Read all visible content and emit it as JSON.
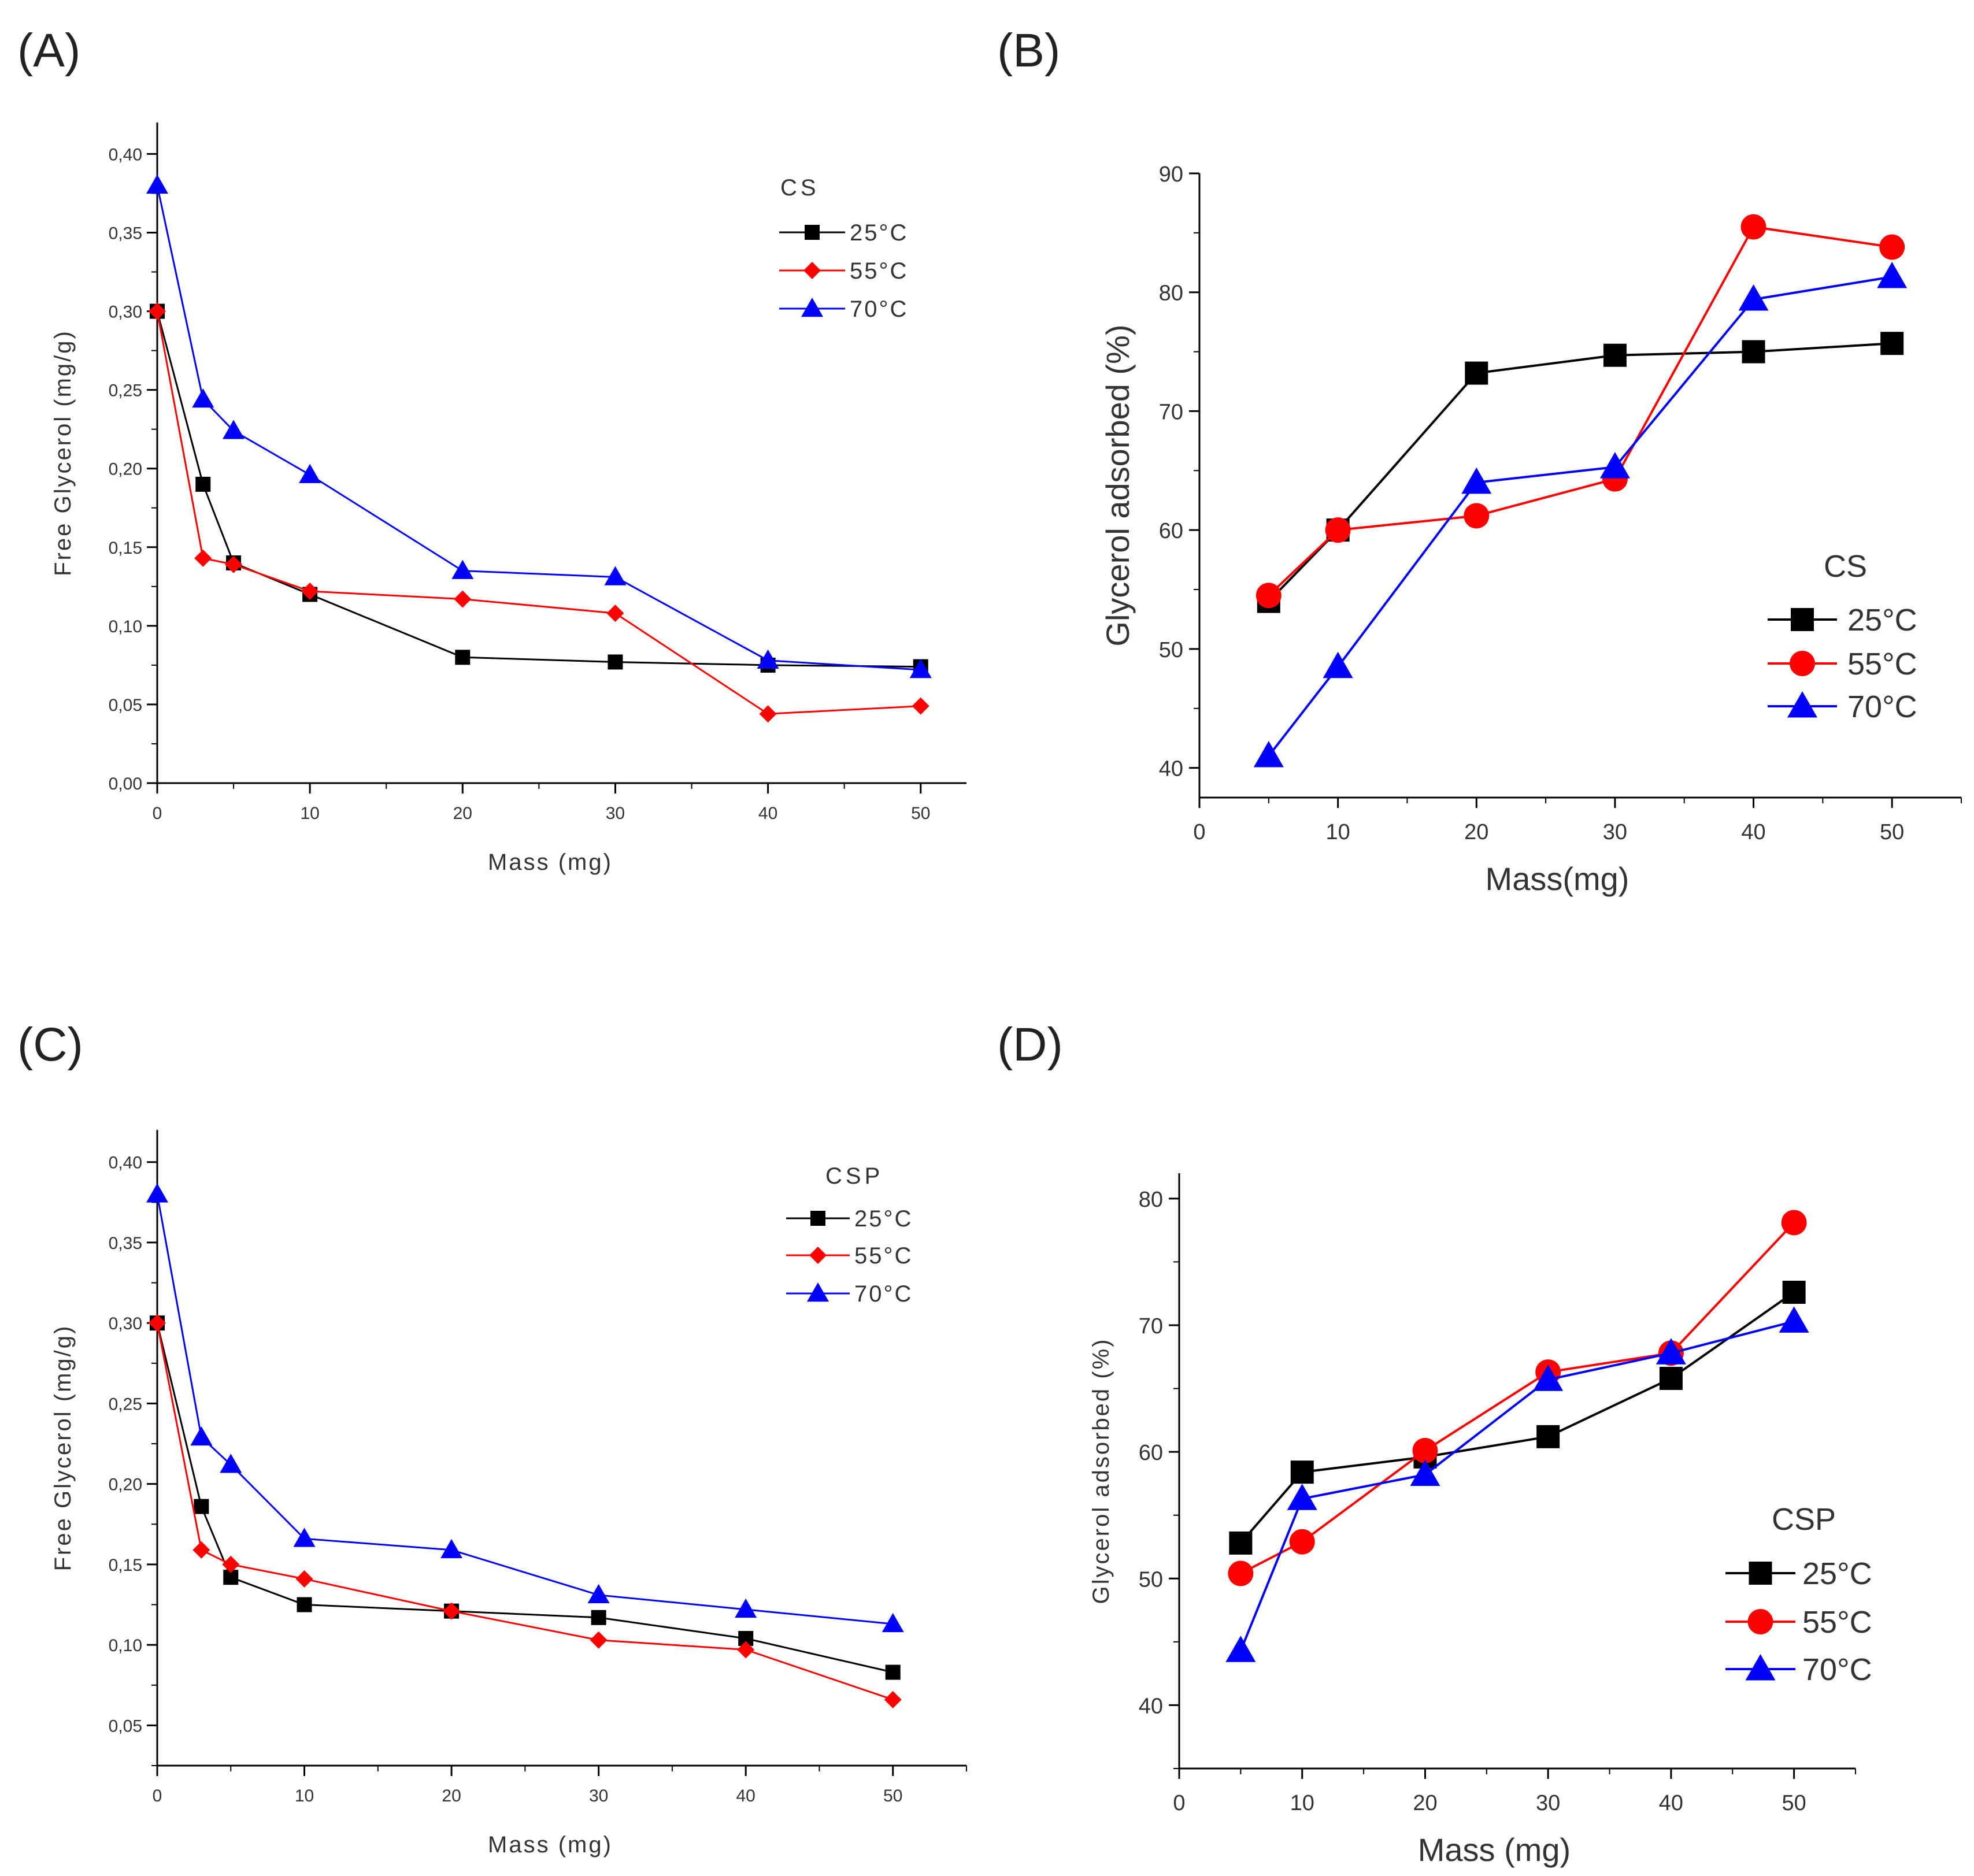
{
  "chart_data": [
    {
      "id": "A",
      "panel_label": "(A)",
      "type": "line",
      "xlabel": "Mass (mg)",
      "ylabel": "Free Glycerol (mg/g)",
      "xlim": [
        0,
        53
      ],
      "ylim": [
        0,
        0.42
      ],
      "xticks": [
        0,
        10,
        20,
        30,
        40,
        50
      ],
      "xtick_labels": [
        "0",
        "10",
        "20",
        "30",
        "40",
        "50"
      ],
      "yticks": [
        0,
        0.05,
        0.1,
        0.15,
        0.2,
        0.25,
        0.3,
        0.35,
        0.4
      ],
      "ytick_labels": [
        "0,00",
        "0,05",
        "0,10",
        "0,15",
        "0,20",
        "0,25",
        "0,30",
        "0,35",
        "0,40"
      ],
      "legend_title": "CS",
      "legend_position": "top-right",
      "series": [
        {
          "name": "25°C",
          "color": "#000000",
          "marker": "square",
          "x": [
            0,
            3,
            5,
            10,
            20,
            30,
            40,
            50
          ],
          "y": [
            0.3,
            0.19,
            0.14,
            0.12,
            0.08,
            0.077,
            0.075,
            0.074
          ]
        },
        {
          "name": "55°C",
          "color": "#ff0000",
          "marker": "diamond",
          "x": [
            0,
            3,
            5,
            10,
            20,
            30,
            40,
            50
          ],
          "y": [
            0.3,
            0.143,
            0.139,
            0.122,
            0.117,
            0.108,
            0.044,
            0.049
          ]
        },
        {
          "name": "70°C",
          "color": "#0000ff",
          "marker": "triangle",
          "x": [
            0,
            3,
            5,
            10,
            20,
            30,
            40,
            50
          ],
          "y": [
            0.38,
            0.244,
            0.224,
            0.196,
            0.135,
            0.131,
            0.078,
            0.072
          ]
        }
      ]
    },
    {
      "id": "B",
      "panel_label": "(B)",
      "type": "line",
      "xlabel": "Mass(mg)",
      "ylabel": "Glycerol adsorbed (%)",
      "xlim": [
        0,
        55
      ],
      "ylim": [
        37.5,
        90
      ],
      "xticks": [
        0,
        10,
        20,
        30,
        40,
        50
      ],
      "xtick_labels": [
        "0",
        "10",
        "20",
        "30",
        "40",
        "50"
      ],
      "yticks": [
        40,
        50,
        60,
        70,
        80,
        90
      ],
      "ytick_labels": [
        "40",
        "50",
        "60",
        "70",
        "80",
        "90"
      ],
      "legend_title": "CS",
      "legend_position": "bottom-right",
      "series": [
        {
          "name": "25°C",
          "color": "#000000",
          "marker": "square",
          "x": [
            5,
            10,
            20,
            30,
            40,
            50
          ],
          "y": [
            54,
            60,
            73.2,
            74.7,
            75,
            75.7
          ]
        },
        {
          "name": "55°C",
          "color": "#ff0000",
          "marker": "circle",
          "x": [
            5,
            10,
            20,
            30,
            40,
            50
          ],
          "y": [
            54.5,
            60,
            61.2,
            64.3,
            85.5,
            83.8
          ]
        },
        {
          "name": "70°C",
          "color": "#0000ff",
          "marker": "triangle",
          "x": [
            5,
            10,
            20,
            30,
            40,
            50
          ],
          "y": [
            41,
            48.5,
            64,
            65.3,
            79.4,
            81.3
          ]
        }
      ]
    },
    {
      "id": "C",
      "panel_label": "(C)",
      "type": "line",
      "xlabel": "Mass (mg)",
      "ylabel": "Free Glycerol (mg/g)",
      "xlim": [
        0,
        55
      ],
      "ylim": [
        0.025,
        0.42
      ],
      "xticks": [
        0,
        10,
        20,
        30,
        40,
        50
      ],
      "xtick_labels": [
        "0",
        "10",
        "20",
        "30",
        "40",
        "50"
      ],
      "yticks": [
        0.05,
        0.1,
        0.15,
        0.2,
        0.25,
        0.3,
        0.35,
        0.4
      ],
      "ytick_labels": [
        "0,05",
        "0,10",
        "0,15",
        "0,20",
        "0,25",
        "0,30",
        "0,35",
        "0,40"
      ],
      "legend_title": "CSP",
      "legend_position": "top-right",
      "series": [
        {
          "name": "25°C",
          "color": "#000000",
          "marker": "square",
          "x": [
            0,
            3,
            5,
            10,
            20,
            30,
            40,
            50
          ],
          "y": [
            0.3,
            0.186,
            0.142,
            0.125,
            0.121,
            0.117,
            0.104,
            0.083
          ]
        },
        {
          "name": "55°C",
          "color": "#ff0000",
          "marker": "diamond",
          "x": [
            0,
            3,
            5,
            10,
            20,
            30,
            40,
            50
          ],
          "y": [
            0.3,
            0.159,
            0.15,
            0.141,
            0.121,
            0.103,
            0.097,
            0.066
          ]
        },
        {
          "name": "70°C",
          "color": "#0000ff",
          "marker": "triangle",
          "x": [
            0,
            3,
            5,
            10,
            20,
            30,
            40,
            50
          ],
          "y": [
            0.38,
            0.229,
            0.212,
            0.166,
            0.159,
            0.131,
            0.122,
            0.113
          ]
        }
      ]
    },
    {
      "id": "D",
      "panel_label": "(D)",
      "type": "line",
      "xlabel": "Mass (mg)",
      "ylabel": "Glycerol adsorbed (%)",
      "xlim": [
        0,
        55
      ],
      "ylim": [
        35,
        82
      ],
      "xticks": [
        0,
        10,
        20,
        30,
        40,
        50
      ],
      "xtick_labels": [
        "0",
        "10",
        "20",
        "30",
        "40",
        "50"
      ],
      "yticks": [
        40,
        50,
        60,
        70,
        80
      ],
      "ytick_labels": [
        "40",
        "50",
        "60",
        "70",
        "80"
      ],
      "legend_title": "CSP",
      "legend_position": "bottom-right",
      "series": [
        {
          "name": "25°C",
          "color": "#000000",
          "marker": "square",
          "x": [
            5,
            10,
            20,
            30,
            40,
            50
          ],
          "y": [
            52.8,
            58.4,
            59.6,
            61.2,
            65.8,
            72.6
          ]
        },
        {
          "name": "55°C",
          "color": "#ff0000",
          "marker": "circle",
          "x": [
            5,
            10,
            20,
            30,
            40,
            50
          ],
          "y": [
            50.4,
            52.9,
            60.1,
            66.3,
            67.8,
            78.1
          ]
        },
        {
          "name": "70°C",
          "color": "#0000ff",
          "marker": "triangle",
          "x": [
            5,
            10,
            20,
            30,
            40,
            50
          ],
          "y": [
            44.3,
            56.3,
            58.2,
            65.7,
            67.8,
            70.3
          ]
        }
      ]
    }
  ]
}
